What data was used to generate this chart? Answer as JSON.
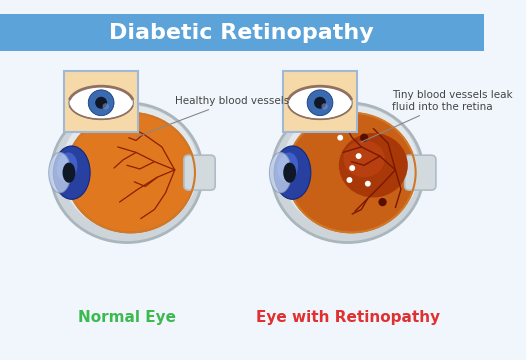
{
  "title": "Diabetic Retinopathy",
  "title_color": "#ffffff",
  "title_bg_color": "#5ba3d9",
  "bg_color": "#f0f6fc",
  "left_label": "Normal Eye",
  "left_label_color": "#3cb94f",
  "right_label": "Eye with Retinopathy",
  "right_label_color": "#e03030",
  "left_annotation": "Healthy blood vessels",
  "right_annotation": "Tiny blood vessels leak\nfluid into the retina",
  "annotation_color": "#444444",
  "retina_color": "#e07820",
  "vessel_color": "#8b2000",
  "inset_bg": "#f5d9a8",
  "inset_border": "#a0b8d8"
}
